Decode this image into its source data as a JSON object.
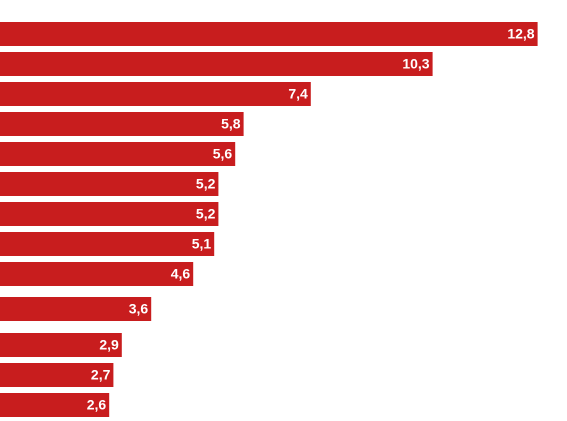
{
  "chart_data": {
    "type": "bar",
    "orientation": "horizontal",
    "categories": [
      null,
      null,
      null,
      null,
      null,
      null,
      null,
      null,
      null,
      null,
      null,
      null,
      null
    ],
    "values": [
      12.8,
      10.3,
      7.4,
      5.8,
      5.6,
      5.2,
      5.2,
      5.1,
      4.6,
      3.6,
      2.9,
      2.7,
      2.6
    ],
    "value_labels": [
      "12,8",
      "10,3",
      "7,4",
      "5,8",
      "5,6",
      "5,2",
      "5,2",
      "5,1",
      "4,6",
      "3,6",
      "2,9",
      "2,7",
      "2,6"
    ],
    "color": "#c81d1e"
  }
}
